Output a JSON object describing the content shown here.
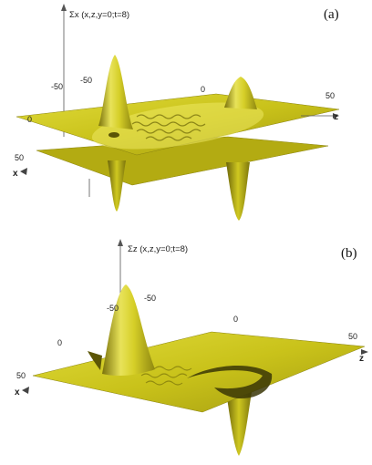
{
  "chart_data": [
    {
      "type": "surface",
      "panel_label": "(a)",
      "z_label": "Σx (x,z,y=0;t=8)",
      "x_axis": {
        "label": "x",
        "ticks": [
          "-50",
          "0",
          "50"
        ]
      },
      "z_axis": {
        "label": "z",
        "ticks": [
          "-50",
          "0",
          "50"
        ]
      },
      "surface_color": "#c9c21a",
      "features": [
        {
          "kind": "positive-peak",
          "x": 0,
          "z": -40
        },
        {
          "kind": "negative-peak",
          "x": 0,
          "z": -40
        },
        {
          "kind": "positive-peak",
          "x": 0,
          "z": 30
        },
        {
          "kind": "negative-peak",
          "x": 0,
          "z": 30
        },
        {
          "kind": "ripples",
          "z_range": [
            -30,
            20
          ]
        }
      ]
    },
    {
      "type": "surface",
      "panel_label": "(b)",
      "z_label": "Σz (x,z,y=0;t=8)",
      "x_axis": {
        "label": "x",
        "ticks": [
          "-50",
          "0",
          "50"
        ]
      },
      "z_axis": {
        "label": "z",
        "ticks": [
          "-50",
          "0",
          "50"
        ]
      },
      "surface_color": "#c9c21a",
      "features": [
        {
          "kind": "positive-peak",
          "x": 0,
          "z": -45
        },
        {
          "kind": "negative-peak",
          "x": 0,
          "z": 35
        },
        {
          "kind": "ripples",
          "z_range": [
            -30,
            20
          ]
        }
      ]
    }
  ]
}
